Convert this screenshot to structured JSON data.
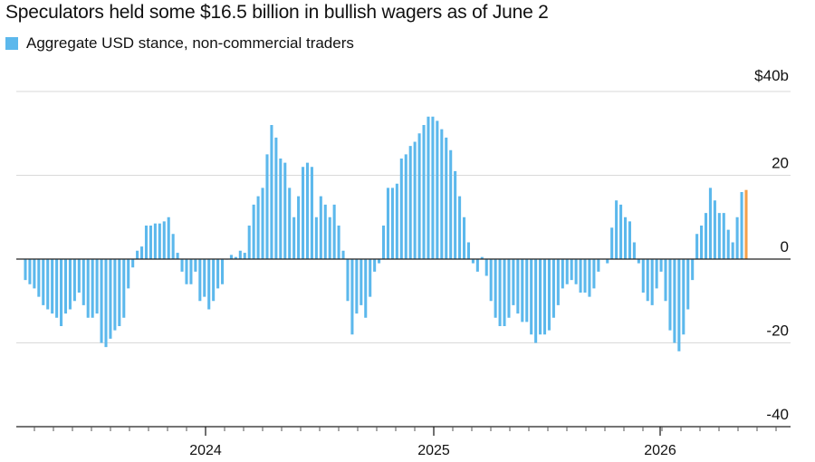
{
  "chart_data": {
    "type": "bar",
    "title": "Speculators held some $16.5 billion in bullish wagers as of June 2",
    "legend": [
      {
        "label": "Aggregate USD stance, non-commercial traders",
        "color": "#5cb8ec"
      }
    ],
    "y_ticks": [
      "$40b",
      "20",
      "0",
      "-20",
      "-40"
    ],
    "y_tick_values": [
      40,
      20,
      0,
      -20,
      -40
    ],
    "ylim": [
      -40,
      40
    ],
    "x_ticks": [
      "2024",
      "2025",
      "2026"
    ],
    "series": [
      {
        "color": "#5cb8ec",
        "highlight_color": "#f5a04a",
        "values": [
          -5,
          -6,
          -7,
          -9,
          -11,
          -12,
          -13,
          -14,
          -16,
          -13,
          -12,
          -10,
          -8,
          -11,
          -14,
          -14,
          -13,
          -20,
          -21,
          -19,
          -17,
          -16,
          -14,
          -7,
          -2,
          2,
          3,
          8,
          8,
          8.5,
          8.5,
          9,
          10,
          6,
          1.5,
          -3,
          -6,
          -6,
          -3,
          -10,
          -9,
          -12,
          -10,
          -7,
          -6,
          0,
          1,
          0.5,
          2,
          1.5,
          8,
          13,
          15,
          17,
          25,
          32,
          29,
          24,
          23,
          17,
          10,
          15,
          22,
          23,
          22,
          10,
          15,
          13,
          10,
          13,
          8,
          2,
          -10,
          -18,
          -13,
          -11,
          -14,
          -9,
          -3,
          -1,
          8,
          17,
          17,
          18,
          24,
          25,
          27,
          28,
          30,
          32,
          34,
          34,
          33,
          31,
          29,
          26,
          21,
          15,
          10,
          4,
          -1,
          -3,
          0.5,
          -4,
          -10,
          -14,
          -16,
          -16,
          -14,
          -11,
          -13,
          -15,
          -15,
          -18,
          -20,
          -18,
          -18,
          -17,
          -14,
          -11,
          -7,
          -6,
          -5,
          -6,
          -8,
          -8,
          -9,
          -7,
          -3,
          0,
          -1,
          7.5,
          14,
          13,
          10,
          9,
          4,
          -1,
          -8,
          -10,
          -11,
          -7,
          -3,
          -10,
          -17,
          -20,
          -22,
          -18,
          -12,
          -5,
          6,
          8,
          11,
          17,
          14,
          11,
          11,
          7,
          4,
          10,
          16,
          16.5
        ]
      }
    ]
  }
}
